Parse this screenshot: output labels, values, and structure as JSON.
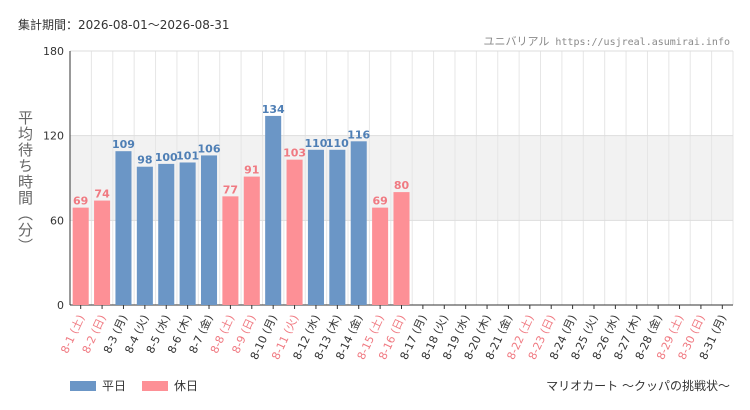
{
  "header": {
    "period": "集計期間：2026-08-01～2026-08-31",
    "site_name": "ユニバリアル",
    "site_url": "https://usjreal.asumirai.info"
  },
  "legend": {
    "weekday": "平日",
    "holiday": "休日"
  },
  "attraction": "マリオカート ～クッパの挑戦状～",
  "colors": {
    "weekday": "#6b96c6",
    "holiday": "#fd9096",
    "weekday_label": "#4f7fb5",
    "holiday_label": "#f07a82",
    "holiday_tick": "#f07a82",
    "weekday_tick": "#333333",
    "band": "#f2f2f2"
  },
  "chart_data": {
    "type": "bar",
    "ylabel": "平均待ち時間（分）",
    "ylim": [
      0,
      180
    ],
    "yticks": [
      0,
      60,
      120,
      180
    ],
    "shaded_band": [
      60,
      120
    ],
    "grid": true,
    "legend_position": "bottom-left",
    "categories": [
      "8-1 (土)",
      "8-2 (日)",
      "8-3 (月)",
      "8-4 (火)",
      "8-5 (水)",
      "8-6 (木)",
      "8-7 (金)",
      "8-8 (土)",
      "8-9 (日)",
      "8-10 (月)",
      "8-11 (火)",
      "8-12 (水)",
      "8-13 (木)",
      "8-14 (金)",
      "8-15 (土)",
      "8-16 (日)",
      "8-17 (月)",
      "8-18 (火)",
      "8-19 (水)",
      "8-20 (木)",
      "8-21 (金)",
      "8-22 (土)",
      "8-23 (日)",
      "8-24 (月)",
      "8-25 (火)",
      "8-26 (水)",
      "8-27 (木)",
      "8-28 (金)",
      "8-29 (土)",
      "8-30 (日)",
      "8-31 (月)"
    ],
    "day_type": [
      "holiday",
      "holiday",
      "weekday",
      "weekday",
      "weekday",
      "weekday",
      "weekday",
      "holiday",
      "holiday",
      "weekday",
      "holiday",
      "weekday",
      "weekday",
      "weekday",
      "holiday",
      "holiday",
      "weekday",
      "weekday",
      "weekday",
      "weekday",
      "weekday",
      "holiday",
      "holiday",
      "weekday",
      "weekday",
      "weekday",
      "weekday",
      "weekday",
      "holiday",
      "holiday",
      "weekday"
    ],
    "values": [
      69,
      74,
      109,
      98,
      100,
      101,
      106,
      77,
      91,
      134,
      103,
      110,
      110,
      116,
      69,
      80,
      null,
      null,
      null,
      null,
      null,
      null,
      null,
      null,
      null,
      null,
      null,
      null,
      null,
      null,
      null
    ]
  }
}
